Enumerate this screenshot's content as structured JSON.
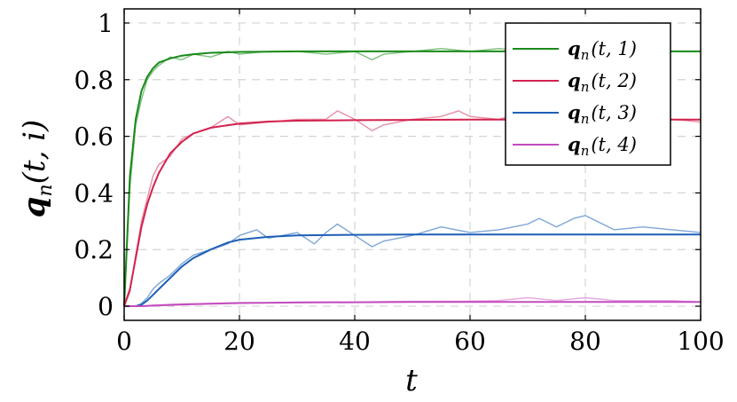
{
  "chart_data": {
    "type": "line",
    "title": "",
    "xlabel": "t",
    "ylabel": {
      "base": "q",
      "sub": "n",
      "args": "(t, i)"
    },
    "xlim": [
      0,
      100
    ],
    "ylim": [
      -0.05,
      1.05
    ],
    "xticks": [
      0,
      20,
      40,
      60,
      80,
      100
    ],
    "xtick_labels": [
      "0",
      "20",
      "40",
      "60",
      "80",
      "100"
    ],
    "yticks": [
      0,
      0.2,
      0.4,
      0.6,
      0.8,
      1
    ],
    "ytick_labels": [
      "0",
      "0.2",
      "0.4",
      "0.6",
      "0.8",
      "1"
    ],
    "grid": true,
    "grid_style": "dashed",
    "legend_position": "top-right",
    "series": [
      {
        "name": "q_n(t, 1)",
        "legend": {
          "base": "q",
          "sub": "n",
          "args": "(t, 1)"
        },
        "color": "#1a8a1a",
        "noisy_color": "#7cc07c",
        "x": [
          0,
          1,
          2,
          3,
          4,
          5,
          6,
          8,
          10,
          12,
          15,
          20,
          25,
          30,
          40,
          50,
          60,
          70,
          80,
          90,
          100
        ],
        "values": [
          0.0,
          0.46,
          0.66,
          0.76,
          0.81,
          0.84,
          0.86,
          0.875,
          0.885,
          0.89,
          0.895,
          0.898,
          0.899,
          0.9,
          0.9,
          0.9,
          0.9,
          0.9,
          0.9,
          0.9,
          0.9
        ],
        "noisy_x": [
          0,
          1,
          2,
          3,
          4,
          5,
          6,
          8,
          10,
          12,
          15,
          18,
          20,
          25,
          30,
          35,
          40,
          43,
          45,
          50,
          55,
          60,
          65,
          70,
          75,
          80,
          85,
          90,
          95,
          100
        ],
        "noisy_values": [
          0.0,
          0.42,
          0.64,
          0.73,
          0.8,
          0.83,
          0.85,
          0.88,
          0.87,
          0.89,
          0.88,
          0.9,
          0.89,
          0.9,
          0.9,
          0.89,
          0.9,
          0.87,
          0.89,
          0.9,
          0.91,
          0.9,
          0.91,
          0.9,
          0.92,
          0.91,
          0.9,
          0.91,
          0.9,
          0.9
        ]
      },
      {
        "name": "q_n(t, 2)",
        "legend": {
          "base": "q",
          "sub": "n",
          "args": "(t, 2)"
        },
        "color": "#d2224e",
        "noisy_color": "#e88ea4",
        "x": [
          0,
          1,
          2,
          3,
          4,
          5,
          6,
          8,
          10,
          12,
          15,
          20,
          25,
          30,
          40,
          50,
          60,
          70,
          80,
          90,
          100
        ],
        "values": [
          0.0,
          0.06,
          0.17,
          0.28,
          0.36,
          0.42,
          0.47,
          0.54,
          0.58,
          0.61,
          0.63,
          0.645,
          0.652,
          0.655,
          0.657,
          0.658,
          0.659,
          0.659,
          0.659,
          0.659,
          0.659
        ],
        "noisy_x": [
          0,
          1,
          2,
          3,
          4,
          5,
          6,
          8,
          10,
          12,
          15,
          18,
          20,
          25,
          30,
          35,
          37,
          40,
          43,
          45,
          50,
          55,
          58,
          60,
          65,
          70,
          75,
          80,
          85,
          90,
          95,
          100
        ],
        "noisy_values": [
          0.0,
          0.05,
          0.18,
          0.3,
          0.38,
          0.46,
          0.5,
          0.53,
          0.59,
          0.61,
          0.63,
          0.67,
          0.64,
          0.65,
          0.66,
          0.66,
          0.69,
          0.66,
          0.62,
          0.64,
          0.66,
          0.67,
          0.69,
          0.67,
          0.66,
          0.69,
          0.7,
          0.68,
          0.66,
          0.67,
          0.66,
          0.65
        ]
      },
      {
        "name": "q_n(t, 3)",
        "legend": {
          "base": "q",
          "sub": "n",
          "args": "(t, 3)"
        },
        "color": "#1f5fb8",
        "noisy_color": "#7ea6d8",
        "x": [
          0,
          2,
          3,
          4,
          5,
          6,
          8,
          10,
          12,
          15,
          18,
          20,
          25,
          30,
          40,
          50,
          60,
          70,
          80,
          90,
          100
        ],
        "values": [
          0.0,
          0.0,
          0.005,
          0.02,
          0.04,
          0.06,
          0.1,
          0.14,
          0.17,
          0.2,
          0.225,
          0.235,
          0.245,
          0.25,
          0.252,
          0.253,
          0.253,
          0.253,
          0.253,
          0.253,
          0.253
        ],
        "noisy_x": [
          0,
          2,
          3,
          4,
          5,
          6,
          8,
          10,
          12,
          15,
          18,
          20,
          23,
          25,
          30,
          33,
          35,
          37,
          40,
          43,
          45,
          50,
          55,
          60,
          65,
          70,
          72,
          75,
          78,
          80,
          85,
          90,
          95,
          100
        ],
        "noisy_values": [
          0.0,
          0.0,
          0.01,
          0.03,
          0.06,
          0.08,
          0.11,
          0.15,
          0.18,
          0.2,
          0.22,
          0.25,
          0.27,
          0.24,
          0.26,
          0.22,
          0.26,
          0.29,
          0.25,
          0.21,
          0.23,
          0.25,
          0.28,
          0.26,
          0.27,
          0.29,
          0.31,
          0.28,
          0.31,
          0.32,
          0.27,
          0.28,
          0.27,
          0.26
        ]
      },
      {
        "name": "q_n(t, 4)",
        "legend": {
          "base": "q",
          "sub": "n",
          "args": "(t, 4)"
        },
        "color": "#c34bbf",
        "noisy_color": "#e6a6e2",
        "x": [
          0,
          3,
          5,
          10,
          15,
          20,
          30,
          40,
          50,
          60,
          70,
          80,
          90,
          100
        ],
        "values": [
          0.0,
          0.0,
          0.002,
          0.006,
          0.009,
          0.011,
          0.013,
          0.014,
          0.015,
          0.015,
          0.015,
          0.015,
          0.015,
          0.015
        ],
        "noisy_x": [
          0,
          3,
          5,
          10,
          15,
          20,
          25,
          30,
          40,
          50,
          60,
          65,
          70,
          75,
          80,
          85,
          90,
          95,
          100
        ],
        "noisy_values": [
          0.0,
          0.0,
          0.004,
          0.008,
          0.01,
          0.013,
          0.012,
          0.015,
          0.015,
          0.017,
          0.018,
          0.02,
          0.03,
          0.02,
          0.03,
          0.02,
          0.02,
          0.02,
          0.015
        ]
      }
    ]
  }
}
